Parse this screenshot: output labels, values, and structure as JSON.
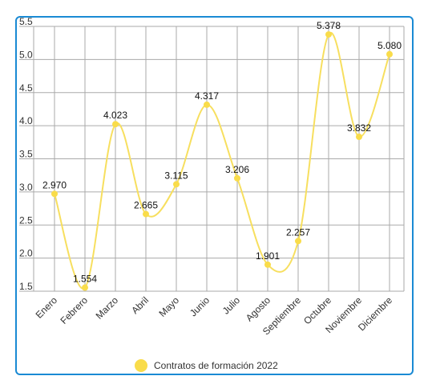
{
  "chart_data": {
    "type": "line",
    "categories": [
      "Enero",
      "Febrero",
      "Marzo",
      "Abril",
      "Mayo",
      "Junio",
      "Julio",
      "Agosto",
      "Septiembre",
      "Octubre",
      "Noviembre",
      "Diciembre"
    ],
    "series": [
      {
        "name": "Contratos de formación 2022",
        "values": [
          2.97,
          1.554,
          4.023,
          2.665,
          3.115,
          4.317,
          3.206,
          1.901,
          2.257,
          5.378,
          3.832,
          5.08
        ],
        "labels": [
          "2.970",
          "1.554",
          "4.023",
          "2.665",
          "3.115",
          "4.317",
          "3.206",
          "1.901",
          "2.257",
          "5.378",
          "3.832",
          "5.080"
        ]
      }
    ],
    "yticks": [
      "1.5",
      "2.0",
      "2.5",
      "3.0",
      "3.5",
      "4.0",
      "4.5",
      "5.0",
      "5.5"
    ],
    "ylim": [
      1.5,
      5.5
    ],
    "smooth": true,
    "grid": true,
    "legend_position": "bottom",
    "colors": {
      "line": "#f7df5f",
      "point": "#f9dc4a",
      "grid": "#aaaaaa",
      "frame": "#1a8ad4"
    }
  }
}
